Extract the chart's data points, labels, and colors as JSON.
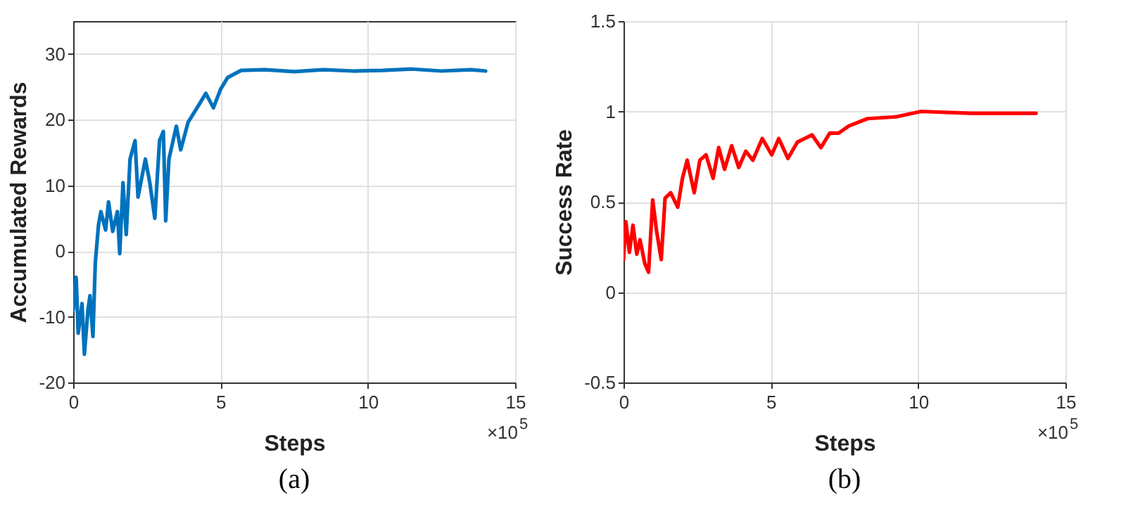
{
  "chart_data": [
    {
      "type": "line",
      "xlabel": "Steps",
      "ylabel": "Accumulated Rewards",
      "xlim": [
        0,
        15
      ],
      "xticks": [
        0,
        5,
        10,
        15
      ],
      "ylim": [
        -20,
        35
      ],
      "yticks": [
        -20,
        -10,
        0,
        10,
        20,
        30
      ],
      "grid": true,
      "annotations": [
        "×10$^{5}$",
        "(a)"
      ],
      "series": [
        {
          "color": "#0072bd",
          "x": [
            0,
            0.1,
            0.17,
            0.3,
            0.38,
            0.5,
            0.57,
            0.67,
            0.75,
            0.86,
            0.94,
            1.1,
            1.2,
            1.34,
            1.5,
            1.58,
            1.69,
            1.8,
            1.93,
            2.1,
            2.2,
            2.45,
            2.6,
            2.77,
            2.93,
            3.06,
            3.14,
            3.25,
            3.5,
            3.65,
            3.9,
            4.3,
            4.5,
            4.76,
            5.0,
            5.24,
            5.7,
            6.5,
            7.5,
            8.5,
            9.5,
            10.5,
            11.5,
            12.5,
            13.5,
            14.0
          ],
          "values": [
            -9,
            -4,
            -12.5,
            -8,
            -15.7,
            -9,
            -6.8,
            -13,
            -1.8,
            4,
            6,
            3.2,
            7.5,
            3,
            6,
            -0.4,
            10.4,
            2.5,
            14,
            16.8,
            8.2,
            14,
            10.4,
            5,
            16.8,
            18.2,
            4.6,
            14,
            19,
            15.4,
            19.6,
            22.5,
            24,
            21.8,
            24.6,
            26.4,
            27.5,
            27.6,
            27.3,
            27.6,
            27.4,
            27.5,
            27.7,
            27.4,
            27.6,
            27.4
          ]
        }
      ]
    },
    {
      "type": "line",
      "xlabel": "Steps",
      "ylabel": "Success Rate",
      "xlim": [
        0,
        15
      ],
      "xticks": [
        0,
        5,
        10,
        15
      ],
      "ylim": [
        -0.5,
        1.5
      ],
      "yticks": [
        -0.5,
        0,
        0.5,
        1,
        1.5
      ],
      "grid": true,
      "annotations": [
        "×10$^{5}$",
        "(b)"
      ],
      "series": [
        {
          "color": "#ff0000",
          "x": [
            0,
            0.08,
            0.2,
            0.32,
            0.45,
            0.56,
            0.72,
            0.85,
            0.99,
            1.12,
            1.28,
            1.41,
            1.6,
            1.84,
            2.0,
            2.16,
            2.4,
            2.59,
            2.8,
            3.04,
            3.23,
            3.43,
            3.67,
            3.91,
            4.15,
            4.39,
            4.71,
            5.03,
            5.27,
            5.58,
            5.9,
            6.4,
            6.7,
            7.0,
            7.3,
            7.65,
            8.28,
            9.24,
            10.1,
            11.8,
            14.0
          ],
          "values": [
            0.18,
            0.39,
            0.22,
            0.37,
            0.21,
            0.29,
            0.16,
            0.11,
            0.51,
            0.34,
            0.18,
            0.52,
            0.55,
            0.47,
            0.63,
            0.73,
            0.55,
            0.73,
            0.76,
            0.63,
            0.8,
            0.68,
            0.81,
            0.69,
            0.78,
            0.73,
            0.85,
            0.76,
            0.85,
            0.74,
            0.83,
            0.87,
            0.8,
            0.88,
            0.88,
            0.92,
            0.96,
            0.97,
            1.0,
            0.99,
            0.99
          ]
        }
      ]
    }
  ]
}
